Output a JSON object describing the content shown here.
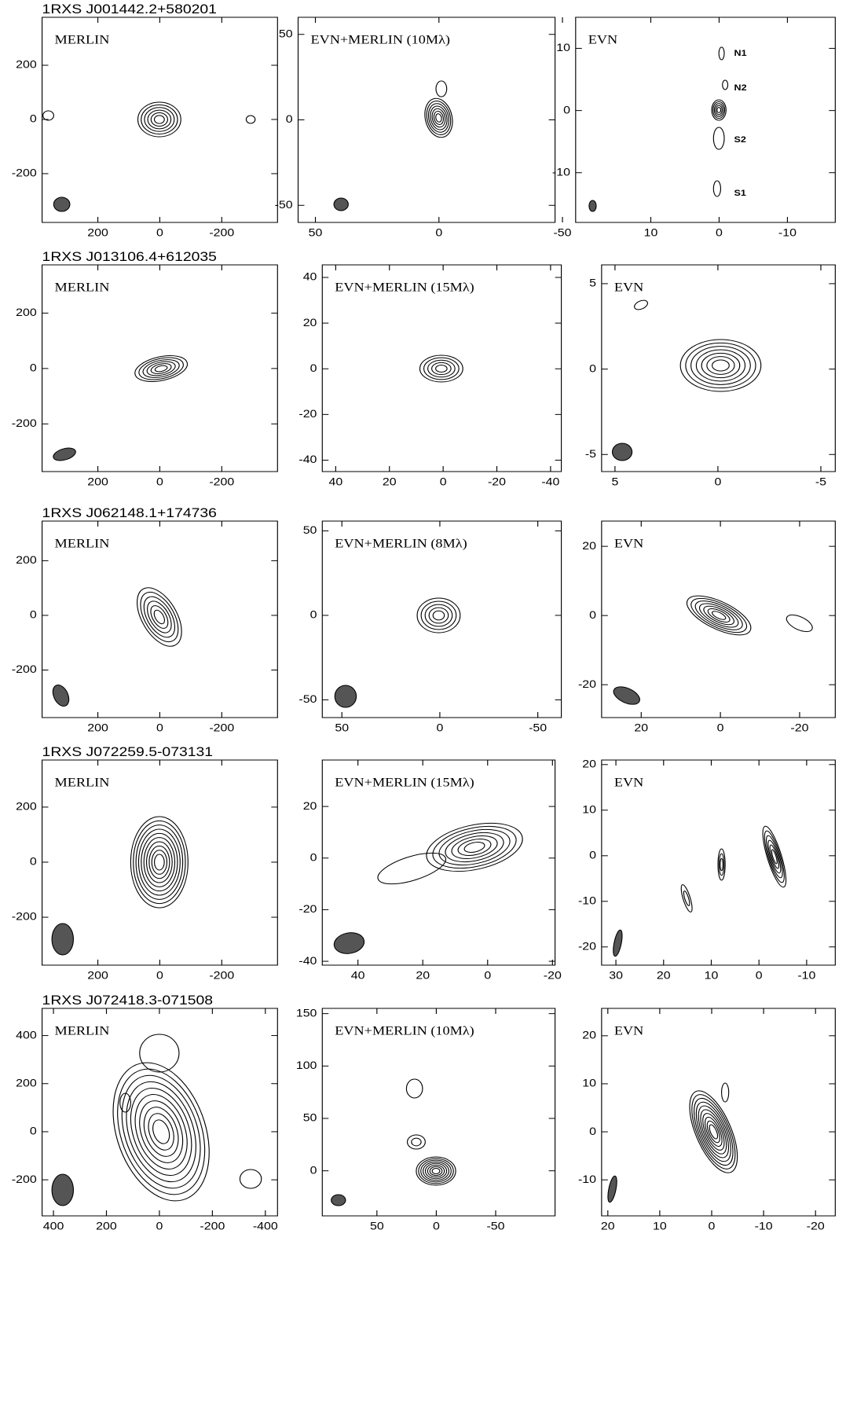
{
  "chart_data": [
    {
      "type": "contour",
      "title": "1RXS J001442.2+580201",
      "label": "MERLIN",
      "xlim": [
        380,
        -380
      ],
      "ylim": [
        -380,
        377
      ],
      "xticks": [
        200,
        0,
        -200
      ],
      "yticks": [
        -200,
        0,
        200
      ]
    },
    {
      "type": "contour",
      "label": "EVN+MERLIN (10Mλ)",
      "xlim": [
        57,
        -47
      ],
      "ylim": [
        -60,
        60
      ],
      "xticks": [
        50,
        0,
        -50
      ],
      "yticks": [
        -50,
        0,
        50
      ]
    },
    {
      "type": "contour",
      "label": "EVN",
      "xlim": [
        21,
        -17
      ],
      "ylim": [
        -18,
        15
      ],
      "xticks": [
        10,
        0,
        -10
      ],
      "yticks": [
        -10,
        0,
        10
      ],
      "annotations": [
        "N1",
        "N2",
        "S2",
        "S1"
      ]
    },
    {
      "type": "contour",
      "title": "1RXS J013106.4+612035",
      "label": "MERLIN",
      "xlim": [
        380,
        -380
      ],
      "ylim": [
        -372,
        374
      ],
      "xticks": [
        200,
        0,
        -200
      ],
      "yticks": [
        -200,
        0,
        200
      ]
    },
    {
      "type": "contour",
      "label": "EVN+MERLIN (15Mλ)",
      "xlim": [
        45,
        -44
      ],
      "ylim": [
        -45,
        45.5
      ],
      "xticks": [
        40,
        20,
        0,
        -20,
        -40
      ],
      "yticks": [
        -40,
        -20,
        0,
        20,
        40
      ]
    },
    {
      "type": "contour",
      "label": "EVN",
      "xlim": [
        5.65,
        -5.7
      ],
      "ylim": [
        -6,
        6.1
      ],
      "xticks": [
        5,
        0,
        -5
      ],
      "yticks": [
        -5,
        0,
        5
      ]
    },
    {
      "type": "contour",
      "title": "1RXS J062148.1+174736",
      "label": "MERLIN",
      "xlim": [
        380,
        -380
      ],
      "ylim": [
        -374,
        345
      ],
      "xticks": [
        200,
        0,
        -200
      ],
      "yticks": [
        -200,
        0,
        200
      ]
    },
    {
      "type": "contour",
      "label": "EVN+MERLIN (8Mλ)",
      "xlim": [
        60,
        -62
      ],
      "ylim": [
        -60.5,
        55.8
      ],
      "xticks": [
        50,
        0,
        -50
      ],
      "yticks": [
        -50,
        0,
        50
      ]
    },
    {
      "type": "contour",
      "label": "EVN",
      "xlim": [
        30,
        -29
      ],
      "ylim": [
        -29.5,
        27.3
      ],
      "xticks": [
        20,
        0,
        -20
      ],
      "yticks": [
        -20,
        0,
        20
      ]
    },
    {
      "type": "contour",
      "title": "1RXS J072259.5-073131",
      "label": "MERLIN",
      "xlim": [
        380,
        -380
      ],
      "ylim": [
        -374,
        371
      ],
      "xticks": [
        200,
        0,
        -200
      ],
      "yticks": [
        -200,
        0,
        200
      ]
    },
    {
      "type": "contour",
      "label": "EVN+MERLIN (15Mλ)",
      "xlim": [
        51,
        -20.8
      ],
      "ylim": [
        -41.5,
        38
      ],
      "xticks": [
        40,
        20,
        0,
        -20
      ],
      "yticks": [
        -40,
        -20,
        0,
        20
      ]
    },
    {
      "type": "contour",
      "label": "EVN",
      "xlim": [
        33,
        -16
      ],
      "ylim": [
        -24,
        21
      ],
      "xticks": [
        30,
        20,
        10,
        0,
        -10
      ],
      "yticks": [
        -20,
        -10,
        0,
        10,
        20
      ]
    },
    {
      "type": "contour",
      "title": "1RXS J072418.3-071508",
      "label": "MERLIN",
      "xlim": [
        443,
        -446
      ],
      "ylim": [
        -350,
        513
      ],
      "xticks": [
        400,
        200,
        0,
        -200,
        -400
      ],
      "yticks": [
        -200,
        0,
        200,
        400
      ]
    },
    {
      "type": "contour",
      "label": "EVN+MERLIN (10Mλ)",
      "xlim": [
        96,
        -100
      ],
      "ylim": [
        -43,
        155
      ],
      "xticks": [
        50,
        0,
        -50
      ],
      "yticks": [
        0,
        50,
        100,
        150
      ]
    },
    {
      "type": "contour",
      "label": "EVN",
      "xlim": [
        21.2,
        -23.8
      ],
      "ylim": [
        -17.5,
        25.7
      ],
      "xticks": [
        20,
        10,
        0,
        -10,
        -20
      ],
      "yticks": [
        -10,
        0,
        10,
        20
      ]
    }
  ]
}
